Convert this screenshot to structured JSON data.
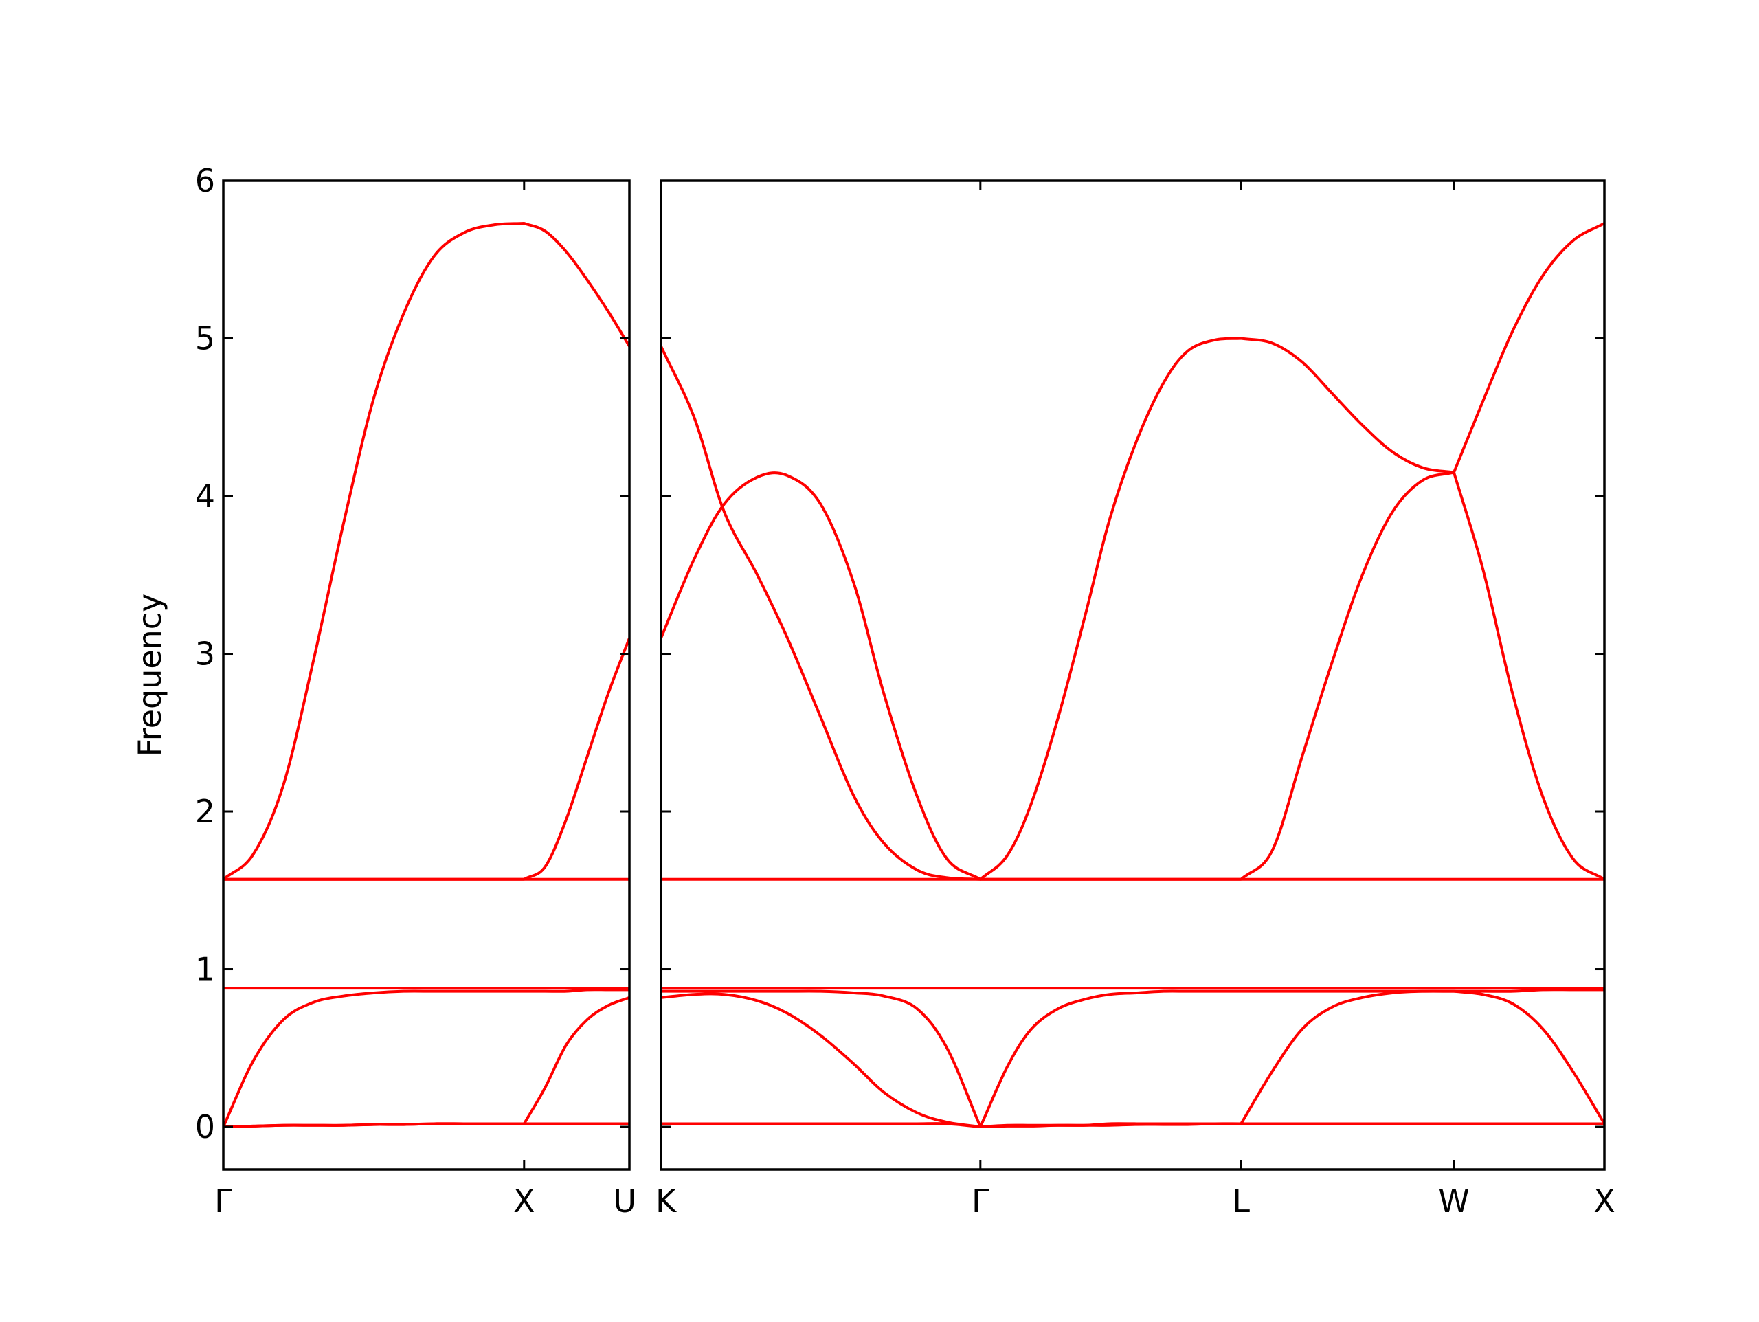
{
  "chart_data": [
    {
      "type": "line",
      "ylabel": "Frequency",
      "x": [
        0,
        0.1,
        0.2,
        0.3,
        0.4,
        0.5,
        0.6,
        0.7,
        0.8,
        0.9,
        1,
        1.07,
        1.14,
        1.21,
        1.28,
        1.35
      ],
      "xlim": [
        0,
        1.35
      ],
      "xticks": [
        {
          "value": 0,
          "label": "Γ"
        },
        {
          "value": 1,
          "label": "X"
        },
        {
          "value": 1.35,
          "label": "U"
        }
      ],
      "ylim": [
        -0.27,
        6
      ],
      "yticks": [
        0,
        1,
        2,
        3,
        4,
        5,
        6
      ],
      "series": [
        {
          "color": "#ff0000",
          "values": [
            1.57,
            1.73,
            2.17,
            2.96,
            3.83,
            4.62,
            5.16,
            5.52,
            5.67,
            5.72,
            5.73,
            5.68,
            5.55,
            5.37,
            5.17,
            4.95
          ]
        },
        {
          "color": "#ff0000",
          "values": [
            1.57,
            1.57,
            1.57,
            1.57,
            1.57,
            1.57,
            1.57,
            1.57,
            1.57,
            1.57,
            1.57,
            1.65,
            1.95,
            2.35,
            2.75,
            3.1
          ]
        },
        {
          "color": "#ff0000",
          "values": [
            1.57,
            1.57,
            1.57,
            1.57,
            1.57,
            1.57,
            1.57,
            1.57,
            1.57,
            1.57,
            1.57,
            1.57,
            1.57,
            1.57,
            1.57,
            1.57
          ]
        },
        {
          "color": "#ff0000",
          "values": [
            0.88,
            0.88,
            0.88,
            0.88,
            0.88,
            0.88,
            0.88,
            0.88,
            0.88,
            0.88,
            0.88,
            0.88,
            0.88,
            0.88,
            0.88,
            0.88
          ]
        },
        {
          "color": "#ff0000",
          "values": [
            0,
            0.42,
            0.68,
            0.79,
            0.83,
            0.85,
            0.86,
            0.86,
            0.86,
            0.86,
            0.86,
            0.86,
            0.86,
            0.87,
            0.87,
            0.87
          ]
        },
        {
          "color": "#ff0000",
          "values": [
            0,
            0.005,
            0.01,
            0.01,
            0.01,
            0.015,
            0.015,
            0.02,
            0.02,
            0.02,
            0.02,
            0.25,
            0.52,
            0.68,
            0.77,
            0.82
          ]
        },
        {
          "color": "#ff0000",
          "values": [
            0,
            0.005,
            0.01,
            0.01,
            0.01,
            0.015,
            0.015,
            0.02,
            0.02,
            0.02,
            0.02,
            0.02,
            0.02,
            0.02,
            0.02,
            0.02
          ]
        }
      ]
    },
    {
      "type": "line",
      "x": [
        0,
        0.11,
        0.21,
        0.32,
        0.42,
        0.53,
        0.64,
        0.74,
        0.85,
        0.95,
        1.061,
        1.15,
        1.23,
        1.32,
        1.41,
        1.49,
        1.58,
        1.67,
        1.75,
        1.84,
        1.927,
        2.03,
        2.13,
        2.23,
        2.33,
        2.43,
        2.53,
        2.634,
        2.73,
        2.83,
        2.93,
        3.03,
        3.134
      ],
      "xlim": [
        0,
        3.134
      ],
      "xticks": [
        {
          "value": 0,
          "label": "K"
        },
        {
          "value": 1.061,
          "label": "Γ"
        },
        {
          "value": 1.927,
          "label": "L"
        },
        {
          "value": 2.634,
          "label": "W"
        },
        {
          "value": 3.134,
          "label": "X"
        }
      ],
      "ylim": [
        -0.27,
        6
      ],
      "yticks": [
        0,
        1,
        2,
        3,
        4,
        5,
        6
      ],
      "series": [
        {
          "color": "#ff0000",
          "values": [
            4.95,
            4.5,
            3.9,
            3.5,
            3.1,
            2.6,
            2.1,
            1.8,
            1.63,
            1.58,
            1.57,
            1.72,
            2.05,
            2.6,
            3.25,
            3.85,
            4.35,
            4.72,
            4.92,
            4.99,
            5.0,
            4.97,
            4.85,
            4.65,
            4.45,
            4.28,
            4.18,
            4.15,
            4.6,
            5.05,
            5.4,
            5.62,
            5.73
          ]
        },
        {
          "color": "#ff0000",
          "values": [
            3.1,
            3.6,
            3.95,
            4.12,
            4.13,
            3.95,
            3.45,
            2.75,
            2.1,
            1.7,
            1.57,
            1.57,
            1.57,
            1.57,
            1.57,
            1.57,
            1.57,
            1.57,
            1.57,
            1.57,
            1.57,
            1.75,
            2.35,
            2.95,
            3.5,
            3.9,
            4.1,
            4.15,
            3.54,
            2.74,
            2.09,
            1.7,
            1.57
          ]
        },
        {
          "color": "#ff0000",
          "values": [
            1.57,
            1.57,
            1.57,
            1.57,
            1.57,
            1.57,
            1.57,
            1.57,
            1.57,
            1.57,
            1.57,
            1.57,
            1.57,
            1.57,
            1.57,
            1.57,
            1.57,
            1.57,
            1.57,
            1.57,
            1.57,
            1.57,
            1.57,
            1.57,
            1.57,
            1.57,
            1.57,
            1.57,
            1.57,
            1.57,
            1.57,
            1.57,
            1.57
          ]
        },
        {
          "color": "#ff0000",
          "values": [
            0.88,
            0.88,
            0.88,
            0.88,
            0.88,
            0.88,
            0.88,
            0.88,
            0.88,
            0.88,
            0.88,
            0.88,
            0.88,
            0.88,
            0.88,
            0.88,
            0.88,
            0.88,
            0.88,
            0.88,
            0.88,
            0.88,
            0.88,
            0.88,
            0.88,
            0.88,
            0.88,
            0.88,
            0.88,
            0.88,
            0.88,
            0.88,
            0.88
          ]
        },
        {
          "color": "#ff0000",
          "values": [
            0.82,
            0.84,
            0.84,
            0.8,
            0.72,
            0.58,
            0.4,
            0.22,
            0.09,
            0.03,
            0,
            0.38,
            0.62,
            0.75,
            0.81,
            0.84,
            0.85,
            0.86,
            0.86,
            0.86,
            0.86,
            0.86,
            0.86,
            0.86,
            0.86,
            0.86,
            0.86,
            0.86,
            0.84,
            0.78,
            0.62,
            0.35,
            0.02
          ]
        },
        {
          "color": "#ff0000",
          "values": [
            0.86,
            0.86,
            0.86,
            0.86,
            0.86,
            0.86,
            0.85,
            0.83,
            0.75,
            0.5,
            0,
            0.005,
            0.005,
            0.01,
            0.01,
            0.01,
            0.015,
            0.015,
            0.015,
            0.02,
            0.02,
            0.35,
            0.62,
            0.76,
            0.82,
            0.85,
            0.86,
            0.86,
            0.86,
            0.86,
            0.87,
            0.87,
            0.87
          ]
        },
        {
          "color": "#ff0000",
          "values": [
            0.02,
            0.02,
            0.02,
            0.02,
            0.02,
            0.02,
            0.02,
            0.02,
            0.02,
            0.02,
            0,
            0.01,
            0.01,
            0.01,
            0.01,
            0.02,
            0.02,
            0.02,
            0.02,
            0.02,
            0.02,
            0.02,
            0.02,
            0.02,
            0.02,
            0.02,
            0.02,
            0.02,
            0.02,
            0.02,
            0.02,
            0.02,
            0.02
          ]
        }
      ]
    }
  ]
}
